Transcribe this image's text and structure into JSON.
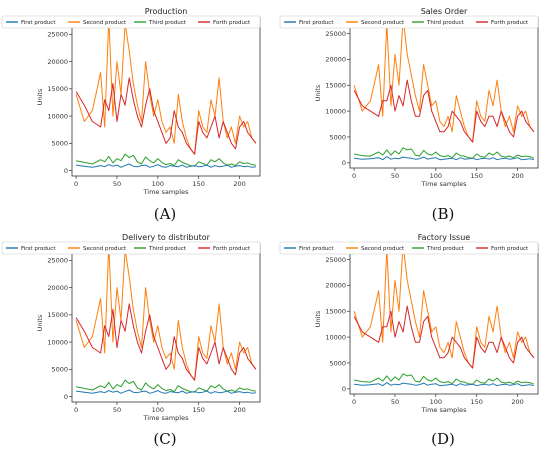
{
  "panels": [
    {
      "label": "(A)",
      "chart_index": 0
    },
    {
      "label": "(B)",
      "chart_index": 1
    },
    {
      "label": "(C)",
      "chart_index": 2
    },
    {
      "label": "(D)",
      "chart_index": 3
    }
  ],
  "colors": {
    "first": "#1f77b4",
    "second": "#ff7f0e",
    "third": "#2ca02c",
    "forth": "#d62728"
  },
  "chart_data": [
    {
      "type": "line",
      "title": "Production",
      "xlabel": "Time samples",
      "ylabel": "Units",
      "xlim": [
        -5,
        225
      ],
      "ylim": [
        -1000,
        28000
      ],
      "xticks": [
        0,
        50,
        100,
        150,
        200
      ],
      "yticks": [
        0,
        5000,
        10000,
        15000,
        20000,
        25000
      ],
      "legend": "top, outside",
      "grid": false,
      "x": [
        0,
        10,
        20,
        30,
        35,
        40,
        45,
        50,
        55,
        60,
        65,
        70,
        75,
        80,
        85,
        90,
        95,
        100,
        105,
        110,
        115,
        120,
        125,
        130,
        135,
        140,
        145,
        150,
        155,
        160,
        165,
        170,
        175,
        180,
        185,
        190,
        195,
        200,
        205,
        210,
        215,
        220
      ],
      "series": [
        {
          "name": "First product",
          "values": [
            1000,
            800,
            600,
            900,
            700,
            1100,
            800,
            1000,
            600,
            900,
            1200,
            800,
            700,
            900,
            1000,
            600,
            800,
            1100,
            700,
            600,
            900,
            800,
            700,
            1000,
            600,
            800,
            900,
            700,
            800,
            1000,
            600,
            900,
            700,
            800,
            1000,
            600,
            800,
            900,
            700,
            800,
            600,
            700
          ]
        },
        {
          "name": "Second product",
          "values": [
            14000,
            9000,
            11000,
            18000,
            8000,
            28000,
            10000,
            20000,
            14000,
            27000,
            22000,
            16000,
            12000,
            9000,
            20000,
            14000,
            10000,
            13000,
            9000,
            7000,
            8000,
            5000,
            14000,
            9000,
            6000,
            4000,
            3000,
            11000,
            8000,
            7000,
            13000,
            10000,
            17000,
            9000,
            6000,
            8000,
            5000,
            10000,
            8000,
            9000,
            6000,
            5000
          ]
        },
        {
          "name": "Third product",
          "values": [
            1800,
            1500,
            1200,
            2000,
            1600,
            2600,
            1400,
            2200,
            1800,
            3000,
            2400,
            2800,
            1600,
            1200,
            2500,
            1800,
            1400,
            2200,
            1500,
            1100,
            1300,
            900,
            2000,
            1500,
            1200,
            900,
            800,
            1600,
            1300,
            1000,
            2000,
            1600,
            2200,
            1400,
            1000,
            1200,
            900,
            1600,
            1300,
            1400,
            1100,
            1000
          ]
        },
        {
          "name": "Forth product",
          "values": [
            14500,
            12000,
            9000,
            8000,
            13000,
            11000,
            16000,
            9000,
            14000,
            12000,
            17000,
            13000,
            10000,
            8000,
            12000,
            15000,
            11000,
            9000,
            7000,
            5000,
            6000,
            11000,
            8000,
            7000,
            5000,
            4000,
            3000,
            9000,
            7000,
            6000,
            8000,
            10000,
            6000,
            9000,
            7000,
            5000,
            4000,
            8000,
            9000,
            7000,
            6000,
            5000
          ]
        }
      ]
    },
    {
      "type": "line",
      "title": "Sales Order",
      "xlabel": "Time samples",
      "ylabel": "Units",
      "xlim": [
        -5,
        225
      ],
      "ylim": [
        -1000,
        28000
      ],
      "xticks": [
        0,
        50,
        100,
        150,
        200
      ],
      "yticks": [
        0,
        5000,
        10000,
        15000,
        20000,
        25000
      ],
      "legend": "top, outside",
      "grid": false,
      "x": [
        0,
        10,
        20,
        30,
        35,
        40,
        45,
        50,
        55,
        60,
        65,
        70,
        75,
        80,
        85,
        90,
        95,
        100,
        105,
        110,
        115,
        120,
        125,
        130,
        135,
        140,
        145,
        150,
        155,
        160,
        165,
        170,
        175,
        180,
        185,
        190,
        195,
        200,
        205,
        210,
        215,
        220
      ],
      "series": [
        {
          "name": "First product",
          "values": [
            900,
            700,
            800,
            1000,
            600,
            1200,
            700,
            900,
            800,
            1100,
            1000,
            900,
            700,
            800,
            1100,
            700,
            900,
            1000,
            600,
            700,
            800,
            900,
            600,
            1000,
            700,
            800,
            900,
            600,
            800,
            900,
            700,
            1000,
            600,
            800,
            900,
            700,
            800,
            1000,
            600,
            700,
            800,
            600
          ]
        },
        {
          "name": "Second product",
          "values": [
            15000,
            10000,
            12000,
            19000,
            9000,
            27000,
            11000,
            21000,
            15000,
            28000,
            21000,
            17000,
            13000,
            10000,
            19000,
            15000,
            11000,
            12000,
            8000,
            7000,
            9000,
            6000,
            13000,
            10000,
            7000,
            5000,
            4000,
            12000,
            9000,
            8000,
            14000,
            11000,
            16000,
            10000,
            7000,
            9000,
            6000,
            11000,
            9000,
            10000,
            7000,
            6000
          ]
        },
        {
          "name": "Third product",
          "values": [
            1700,
            1400,
            1300,
            2100,
            1500,
            2500,
            1500,
            2300,
            1700,
            2900,
            2500,
            2700,
            1500,
            1300,
            2400,
            1700,
            1500,
            2100,
            1400,
            1200,
            1400,
            1000,
            1900,
            1400,
            1300,
            1000,
            900,
            1700,
            1200,
            1100,
            1900,
            1500,
            2100,
            1300,
            1100,
            1300,
            1000,
            1500,
            1200,
            1300,
            1200,
            900
          ]
        },
        {
          "name": "Forth product",
          "values": [
            14000,
            11000,
            10000,
            9000,
            12000,
            12000,
            15000,
            10000,
            13000,
            11000,
            16000,
            12000,
            9000,
            9000,
            13000,
            14000,
            10000,
            8000,
            6000,
            6000,
            7000,
            10000,
            9000,
            8000,
            6000,
            5000,
            4000,
            10000,
            8000,
            7000,
            9000,
            9000,
            7000,
            10000,
            8000,
            6000,
            5000,
            9000,
            10000,
            8000,
            7000,
            6000
          ]
        }
      ]
    },
    {
      "type": "line",
      "title": "Delivery to distributor",
      "xlabel": "Time samples",
      "ylabel": "Units",
      "xlim": [
        -5,
        225
      ],
      "ylim": [
        -1000,
        28000
      ],
      "xticks": [
        0,
        50,
        100,
        150,
        200
      ],
      "yticks": [
        0,
        5000,
        10000,
        15000,
        20000,
        25000
      ],
      "legend": "top, outside",
      "grid": false,
      "x": [
        0,
        10,
        20,
        30,
        35,
        40,
        45,
        50,
        55,
        60,
        65,
        70,
        75,
        80,
        85,
        90,
        95,
        100,
        105,
        110,
        115,
        120,
        125,
        130,
        135,
        140,
        145,
        150,
        155,
        160,
        165,
        170,
        175,
        180,
        185,
        190,
        195,
        200,
        205,
        210,
        215,
        220
      ],
      "series": [
        {
          "name": "First product",
          "values": [
            1000,
            800,
            600,
            900,
            700,
            1100,
            800,
            1000,
            600,
            900,
            1200,
            800,
            700,
            900,
            1000,
            600,
            800,
            1100,
            700,
            600,
            900,
            800,
            700,
            1000,
            600,
            800,
            900,
            700,
            800,
            1000,
            600,
            900,
            700,
            800,
            1000,
            600,
            800,
            900,
            700,
            800,
            600,
            700
          ]
        },
        {
          "name": "Second product",
          "values": [
            14000,
            9000,
            11000,
            18000,
            8000,
            28000,
            10000,
            20000,
            14000,
            27000,
            22000,
            16000,
            12000,
            9000,
            20000,
            14000,
            10000,
            13000,
            9000,
            7000,
            8000,
            5000,
            14000,
            9000,
            6000,
            4000,
            3000,
            11000,
            8000,
            7000,
            13000,
            10000,
            17000,
            9000,
            6000,
            8000,
            5000,
            10000,
            8000,
            9000,
            6000,
            5000
          ]
        },
        {
          "name": "Third product",
          "values": [
            1800,
            1500,
            1200,
            2000,
            1600,
            2600,
            1400,
            2200,
            1800,
            3000,
            2400,
            2800,
            1600,
            1200,
            2500,
            1800,
            1400,
            2200,
            1500,
            1100,
            1300,
            900,
            2000,
            1500,
            1200,
            900,
            800,
            1600,
            1300,
            1000,
            2000,
            1600,
            2200,
            1400,
            1000,
            1200,
            900,
            1600,
            1300,
            1400,
            1100,
            1000
          ]
        },
        {
          "name": "Forth product",
          "values": [
            14500,
            12000,
            9000,
            8000,
            13000,
            11000,
            16000,
            9000,
            14000,
            12000,
            17000,
            13000,
            10000,
            8000,
            12000,
            15000,
            11000,
            9000,
            7000,
            5000,
            6000,
            11000,
            8000,
            7000,
            5000,
            4000,
            3000,
            9000,
            7000,
            6000,
            8000,
            10000,
            6000,
            9000,
            7000,
            5000,
            4000,
            8000,
            9000,
            7000,
            6000,
            5000
          ]
        }
      ]
    },
    {
      "type": "line",
      "title": "Factory Issue",
      "xlabel": "Time samples",
      "ylabel": "Units",
      "xlim": [
        -5,
        225
      ],
      "ylim": [
        -1000,
        28000
      ],
      "xticks": [
        0,
        50,
        100,
        150,
        200
      ],
      "yticks": [
        0,
        5000,
        10000,
        15000,
        20000,
        25000
      ],
      "legend": "top, outside",
      "grid": false,
      "x": [
        0,
        10,
        20,
        30,
        35,
        40,
        45,
        50,
        55,
        60,
        65,
        70,
        75,
        80,
        85,
        90,
        95,
        100,
        105,
        110,
        115,
        120,
        125,
        130,
        135,
        140,
        145,
        150,
        155,
        160,
        165,
        170,
        175,
        180,
        185,
        190,
        195,
        200,
        205,
        210,
        215,
        220
      ],
      "series": [
        {
          "name": "First product",
          "values": [
            900,
            700,
            800,
            1000,
            600,
            1200,
            700,
            900,
            800,
            1100,
            1000,
            900,
            700,
            800,
            1100,
            700,
            900,
            1000,
            600,
            700,
            800,
            900,
            600,
            1000,
            700,
            800,
            900,
            600,
            800,
            900,
            700,
            1000,
            600,
            800,
            900,
            700,
            800,
            1000,
            600,
            700,
            800,
            600
          ]
        },
        {
          "name": "Second product",
          "values": [
            15000,
            10000,
            12000,
            19000,
            9000,
            27000,
            11000,
            21000,
            15000,
            28000,
            21000,
            17000,
            13000,
            10000,
            19000,
            15000,
            11000,
            12000,
            8000,
            7000,
            9000,
            6000,
            13000,
            10000,
            7000,
            5000,
            4000,
            12000,
            9000,
            8000,
            14000,
            11000,
            16000,
            10000,
            7000,
            9000,
            6000,
            11000,
            9000,
            10000,
            7000,
            6000
          ]
        },
        {
          "name": "Third product",
          "values": [
            1700,
            1400,
            1300,
            2100,
            1500,
            2500,
            1500,
            2300,
            1700,
            2900,
            2500,
            2700,
            1500,
            1300,
            2400,
            1700,
            1500,
            2100,
            1400,
            1200,
            1400,
            1000,
            1900,
            1400,
            1300,
            1000,
            900,
            1700,
            1200,
            1100,
            1900,
            1500,
            2100,
            1300,
            1100,
            1300,
            1000,
            1500,
            1200,
            1300,
            1200,
            900
          ]
        },
        {
          "name": "Forth product",
          "values": [
            14000,
            11000,
            10000,
            9000,
            12000,
            12000,
            15000,
            10000,
            13000,
            11000,
            16000,
            12000,
            9000,
            9000,
            13000,
            14000,
            10000,
            8000,
            6000,
            6000,
            7000,
            10000,
            9000,
            8000,
            6000,
            5000,
            4000,
            10000,
            8000,
            7000,
            9000,
            9000,
            7000,
            10000,
            8000,
            6000,
            5000,
            9000,
            10000,
            8000,
            7000,
            6000
          ]
        }
      ]
    }
  ]
}
